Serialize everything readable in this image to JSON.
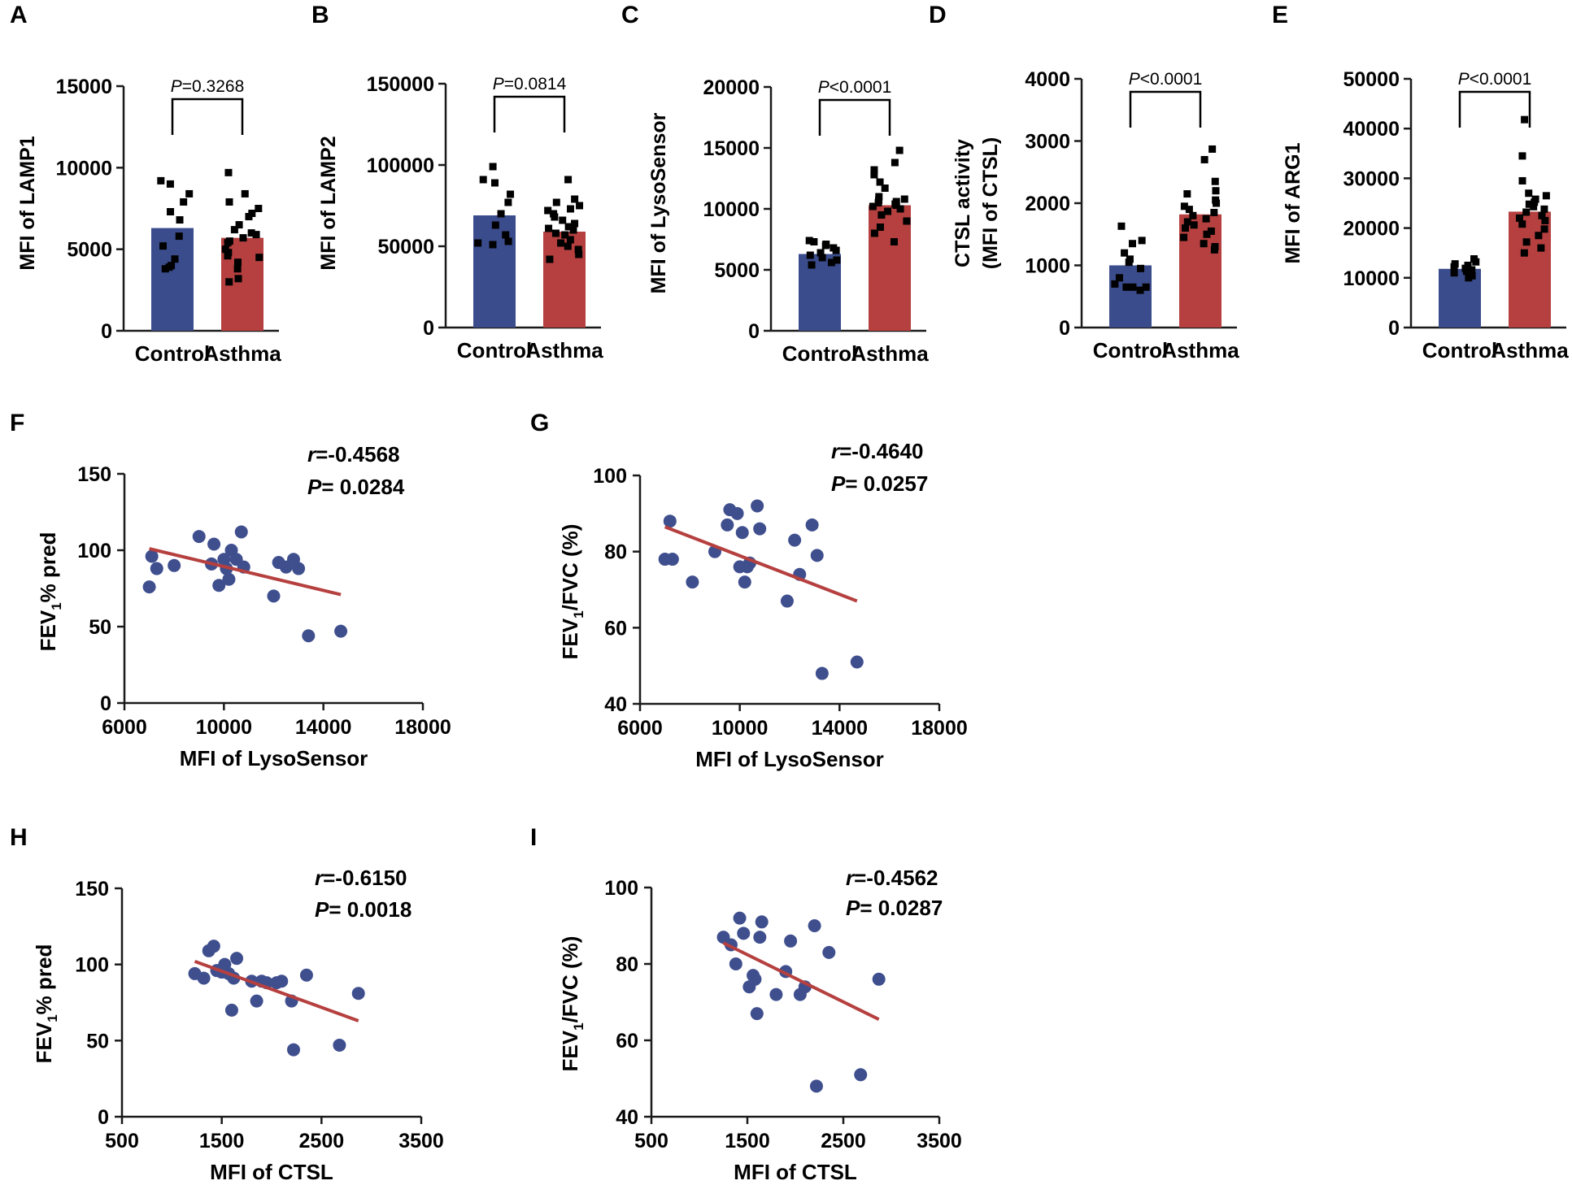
{
  "figure": {
    "colors": {
      "control_bar": "#3B4C8C",
      "asthma_bar": "#B5403F",
      "point": "#3F4F8E",
      "fit_line": "#B5403F",
      "axis": "#1a1a1a"
    }
  },
  "chart_data": [
    {
      "panel": "A",
      "type": "bar",
      "ylabel": "MFI of LAMP1",
      "categories": [
        "Control",
        "Asthma"
      ],
      "ylim": [
        0,
        15000
      ],
      "yticks": [
        0,
        5000,
        10000,
        15000
      ],
      "ytick_labels": [
        "0",
        "5000",
        "10000",
        "15000"
      ],
      "means": [
        6300,
        5700
      ],
      "points": [
        [
          9200,
          9000,
          8400,
          7900,
          7300,
          6800,
          5800,
          5200,
          4400,
          4000,
          3900,
          3800
        ],
        [
          9700,
          8400,
          7900,
          7500,
          7200,
          7000,
          6500,
          6200,
          6000,
          5900,
          5700,
          5500,
          5400,
          5000,
          4800,
          4600,
          4500,
          4200,
          3800,
          3200,
          3000
        ]
      ],
      "pvalue_prefix": "P",
      "pvalue_rest": "=0.3268"
    },
    {
      "panel": "B",
      "type": "bar",
      "ylabel": "MFI of LAMP2",
      "categories": [
        "Control",
        "Asthma"
      ],
      "ylim": [
        0,
        150000
      ],
      "yticks": [
        0,
        50000,
        100000,
        150000
      ],
      "ytick_labels": [
        "0",
        "50000",
        "100000",
        "150000"
      ],
      "means": [
        69000,
        59000
      ],
      "points": [
        [
          99000,
          91000,
          89000,
          82000,
          77000,
          70000,
          63000,
          57000,
          53000,
          52000,
          51000
        ],
        [
          91000,
          79000,
          77000,
          75000,
          73000,
          72000,
          70000,
          68000,
          66000,
          64000,
          62000,
          61000,
          60000,
          58000,
          57000,
          54000,
          52000,
          50000,
          48000,
          45000,
          42000
        ]
      ],
      "pvalue_prefix": "P",
      "pvalue_rest": "=0.0814"
    },
    {
      "panel": "C",
      "type": "bar",
      "ylabel": "MFI of LysoSensor",
      "categories": [
        "Control",
        "Asthma"
      ],
      "ylim": [
        0,
        20000
      ],
      "yticks": [
        0,
        5000,
        10000,
        15000,
        20000
      ],
      "ytick_labels": [
        "0",
        "5000",
        "10000",
        "15000",
        "20000"
      ],
      "means": [
        6300,
        10300
      ],
      "points": [
        [
          7400,
          7300,
          7100,
          7000,
          6800,
          6600,
          6400,
          6200,
          6000,
          5800,
          5600,
          5400
        ],
        [
          14800,
          13800,
          13200,
          12800,
          12200,
          11700,
          11000,
          10800,
          10700,
          10600,
          10500,
          10400,
          10300,
          10200,
          10000,
          9800,
          9500,
          9000,
          8500,
          8000,
          7300
        ]
      ],
      "pvalue_prefix": "P",
      "pvalue_rest": "<0.0001"
    },
    {
      "panel": "D",
      "type": "bar",
      "ylabel_lines": [
        "CTSL activity",
        "(MFI of CTSL)"
      ],
      "categories": [
        "Control",
        "Asthma"
      ],
      "ylim": [
        0,
        4000
      ],
      "yticks": [
        0,
        1000,
        2000,
        3000,
        4000
      ],
      "ytick_labels": [
        "0",
        "1000",
        "2000",
        "3000",
        "4000"
      ],
      "means": [
        1000,
        1820
      ],
      "points": [
        [
          1630,
          1400,
          1350,
          1200,
          1100,
          1050,
          950,
          800,
          700,
          650,
          650,
          600,
          650
        ],
        [
          2870,
          2700,
          2350,
          2200,
          2150,
          2050,
          2000,
          1950,
          1900,
          1850,
          1800,
          1750,
          1700,
          1650,
          1600,
          1550,
          1500,
          1450,
          1350,
          1300,
          1250
        ]
      ],
      "pvalue_prefix": "P",
      "pvalue_rest": "<0.0001"
    },
    {
      "panel": "E",
      "type": "bar",
      "ylabel": "MFI of ARG1",
      "categories": [
        "Control",
        "Asthma"
      ],
      "ylim": [
        0,
        50000
      ],
      "yticks": [
        0,
        10000,
        20000,
        30000,
        40000,
        50000
      ],
      "ytick_labels": [
        "0",
        "10000",
        "20000",
        "30000",
        "40000",
        "50000"
      ],
      "means": [
        11800,
        23300
      ],
      "points": [
        [
          13800,
          13200,
          12800,
          12500,
          12200,
          11900,
          11600,
          11300,
          11000,
          10700,
          10400,
          10000
        ],
        [
          41800,
          34500,
          29500,
          27000,
          26500,
          25800,
          25200,
          24800,
          24300,
          23800,
          23200,
          22500,
          22000,
          21500,
          20800,
          19800,
          18500,
          17200,
          16000,
          15000
        ]
      ],
      "pvalue_prefix": "P",
      "pvalue_rest": "<0.0001"
    },
    {
      "panel": "F",
      "type": "scatter",
      "xlabel": "MFI of LysoSensor",
      "ylabel_parts": [
        "FEV",
        "1",
        "% pred"
      ],
      "xlim": [
        6000,
        18000
      ],
      "ylim": [
        0,
        150
      ],
      "xticks": [
        6000,
        10000,
        14000,
        18000
      ],
      "xtick_labels": [
        "6000",
        "10000",
        "14000",
        "18000"
      ],
      "yticks": [
        0,
        50,
        100,
        150
      ],
      "ytick_labels": [
        "0",
        "50",
        "100",
        "150"
      ],
      "x": [
        7000,
        7100,
        7300,
        8000,
        9000,
        9500,
        9600,
        9800,
        10000,
        10100,
        10200,
        10300,
        10500,
        10700,
        10800,
        12000,
        12200,
        12500,
        12800,
        13000,
        13400,
        14700
      ],
      "y": [
        76,
        96,
        88,
        90,
        109,
        91,
        104,
        77,
        94,
        88,
        81,
        100,
        94,
        112,
        89,
        70,
        92,
        89,
        94,
        88,
        44,
        47
      ],
      "fit": [
        [
          7000,
          101
        ],
        [
          14700,
          71
        ]
      ],
      "r_label": "r",
      "r_value": "=-0.4568",
      "p_label": "P",
      "p_value": "= 0.0284"
    },
    {
      "panel": "G",
      "type": "scatter",
      "xlabel": "MFI of LysoSensor",
      "ylabel_parts": [
        "FEV",
        "1",
        "/FVC (%)"
      ],
      "xlim": [
        6000,
        18000
      ],
      "ylim": [
        40,
        100
      ],
      "xticks": [
        6000,
        10000,
        14000,
        18000
      ],
      "xtick_labels": [
        "6000",
        "10000",
        "14000",
        "18000"
      ],
      "yticks": [
        40,
        60,
        80,
        100
      ],
      "ytick_labels": [
        "40",
        "60",
        "80",
        "100"
      ],
      "x": [
        7000,
        7200,
        7300,
        8100,
        9000,
        9500,
        9600,
        9900,
        10000,
        10100,
        10200,
        10300,
        10400,
        10700,
        10800,
        11900,
        12200,
        12400,
        12900,
        13100,
        13300,
        14700
      ],
      "y": [
        78,
        88,
        78,
        72,
        80,
        87,
        91,
        90,
        76,
        85,
        72,
        76,
        77,
        92,
        86,
        67,
        83,
        74,
        87,
        79,
        48,
        51
      ],
      "fit": [
        [
          7000,
          86.5
        ],
        [
          14700,
          67
        ]
      ],
      "r_label": "r",
      "r_value": "=-0.4640",
      "p_label": "P",
      "p_value": "= 0.0257"
    },
    {
      "panel": "H",
      "type": "scatter",
      "xlabel": "MFI of CTSL",
      "ylabel_parts": [
        "FEV",
        "1",
        "% pred"
      ],
      "xlim": [
        500,
        3500
      ],
      "ylim": [
        0,
        150
      ],
      "xticks": [
        500,
        1500,
        2500,
        3500
      ],
      "xtick_labels": [
        "500",
        "1500",
        "2500",
        "3500"
      ],
      "yticks": [
        0,
        50,
        100,
        150
      ],
      "ytick_labels": [
        "0",
        "50",
        "100",
        "150"
      ],
      "x": [
        1230,
        1320,
        1370,
        1420,
        1450,
        1500,
        1530,
        1570,
        1600,
        1620,
        1650,
        1800,
        1850,
        1900,
        1950,
        2050,
        2100,
        2200,
        2220,
        2350,
        2680,
        2870
      ],
      "y": [
        94,
        91,
        109,
        112,
        96,
        95,
        100,
        94,
        70,
        91,
        104,
        89,
        76,
        89,
        88,
        88,
        89,
        76,
        44,
        93,
        47,
        81
      ],
      "fit": [
        [
          1230,
          102
        ],
        [
          2870,
          63
        ]
      ],
      "r_label": "r",
      "r_value": "=-0.6150",
      "p_label": "P",
      "p_value": "= 0.0018"
    },
    {
      "panel": "I",
      "type": "scatter",
      "xlabel": "MFI of CTSL",
      "ylabel_parts": [
        "FEV",
        "1",
        "/FVC (%)"
      ],
      "xlim": [
        500,
        3500
      ],
      "ylim": [
        40,
        100
      ],
      "xticks": [
        500,
        1500,
        2500,
        3500
      ],
      "xtick_labels": [
        "500",
        "1500",
        "2500",
        "3500"
      ],
      "yticks": [
        40,
        60,
        80,
        100
      ],
      "ytick_labels": [
        "40",
        "60",
        "80",
        "100"
      ],
      "x": [
        1250,
        1330,
        1380,
        1420,
        1460,
        1520,
        1560,
        1580,
        1600,
        1630,
        1650,
        1800,
        1900,
        1950,
        2050,
        2100,
        2200,
        2220,
        2350,
        2680,
        2870
      ],
      "y": [
        87,
        85,
        80,
        92,
        88,
        74,
        77,
        76,
        67,
        87,
        91,
        72,
        78,
        86,
        72,
        74,
        90,
        48,
        83,
        51,
        76
      ],
      "fit": [
        [
          1250,
          85.5
        ],
        [
          2870,
          65.5
        ]
      ],
      "r_label": "r",
      "r_value": "=-0.4562",
      "p_label": "P",
      "p_value": "= 0.0287"
    }
  ]
}
